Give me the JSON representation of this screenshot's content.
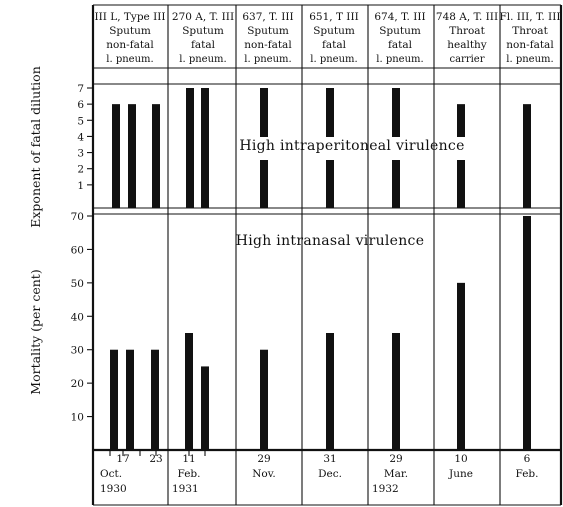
{
  "chart_data": [
    {
      "type": "bar",
      "ylabel": "Exponent of fatal dilution",
      "ylim": [
        0,
        7
      ],
      "yticks": [
        "1",
        "2",
        "3",
        "4",
        "5",
        "6",
        "7"
      ],
      "annotation": "High intraperitoneal virulence",
      "strains": [
        {
          "header": [
            "III L, Type III",
            "Sputum",
            "non-fatal",
            "l. pneum."
          ],
          "values": [
            6,
            6,
            6
          ]
        },
        {
          "header": [
            "270 A, T. III",
            "Sputum",
            "fatal",
            "l. pneum."
          ],
          "values": [
            7,
            7
          ]
        },
        {
          "header": [
            "637, T. III",
            "Sputum",
            "non-fatal",
            "l. pneum."
          ],
          "values": [
            7
          ]
        },
        {
          "header": [
            "651, T III",
            "Sputum",
            "fatal",
            "l. pneum."
          ],
          "values": [
            7
          ]
        },
        {
          "header": [
            "674, T. III",
            "Sputum",
            "fatal",
            "l. pneum."
          ],
          "values": [
            7
          ]
        },
        {
          "header": [
            "748 A, T. III",
            "Throat",
            "healthy",
            "carrier"
          ],
          "values": [
            6
          ]
        },
        {
          "header": [
            "Fl. III, T. III",
            "Throat",
            "non-fatal",
            "l. pneum."
          ],
          "values": [
            6
          ]
        }
      ]
    },
    {
      "type": "bar",
      "ylabel": "Mortality (per cent)",
      "ylim": [
        0,
        70
      ],
      "yticks": [
        "10",
        "20",
        "30",
        "40",
        "50",
        "60",
        "70"
      ],
      "annotation": "High intranasal virulence",
      "strains": [
        {
          "values": [
            30,
            30,
            30
          ]
        },
        {
          "values": [
            35,
            25
          ]
        },
        {
          "values": [
            30
          ]
        },
        {
          "values": [
            35
          ]
        },
        {
          "values": [
            35
          ]
        },
        {
          "values": [
            50
          ]
        },
        {
          "values": [
            70
          ]
        }
      ]
    }
  ],
  "dates": [
    {
      "days": [
        "17",
        "23"
      ],
      "month": "Oct.",
      "year": "1930"
    },
    {
      "days": [
        "11"
      ],
      "month": "Feb.",
      "year": "1931"
    },
    {
      "days": [
        "29"
      ],
      "month": "Nov.",
      "year": ""
    },
    {
      "days": [
        "31"
      ],
      "month": "Dec.",
      "year": ""
    },
    {
      "days": [
        "29"
      ],
      "month": "Mar.",
      "year": "1932"
    },
    {
      "days": [
        "10"
      ],
      "month": "June",
      "year": ""
    },
    {
      "days": [
        "6"
      ],
      "month": "Feb.",
      "year": ""
    }
  ]
}
